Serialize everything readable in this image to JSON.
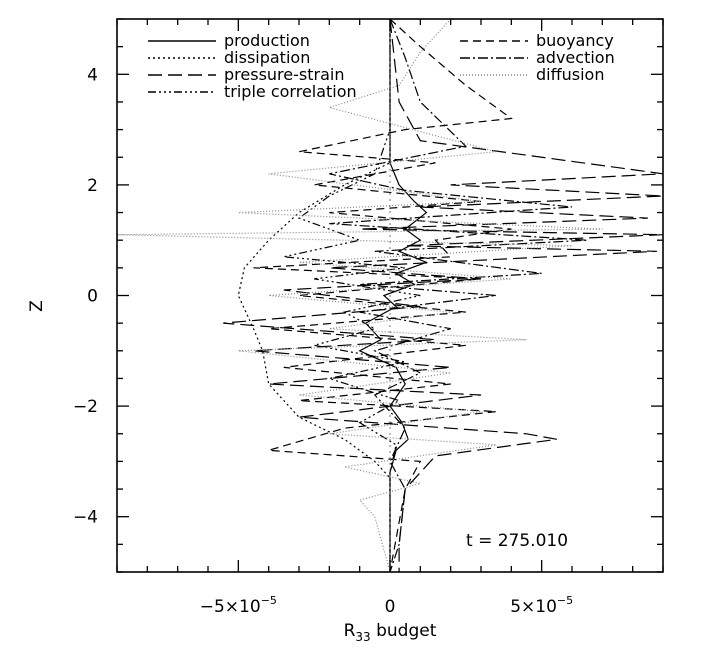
{
  "chart_data": {
    "type": "line",
    "xlabel": "R33 budget",
    "ylabel": "Z",
    "xlim": [
      -9e-05,
      9e-05
    ],
    "ylim": [
      -5,
      5
    ],
    "x_ticks": [
      {
        "value": -5e-05,
        "base": "−5×10",
        "exp": "−5"
      },
      {
        "value": 0,
        "base": "0",
        "exp": ""
      },
      {
        "value": 5e-05,
        "base": "5×10",
        "exp": "−5"
      }
    ],
    "y_ticks": [
      -4,
      -2,
      0,
      2,
      4
    ],
    "annotation": "t  =  275.010",
    "legend_placement": "top",
    "series": [
      {
        "name": "production",
        "dash": "",
        "points": [
          [
            0.0,
            5
          ],
          [
            0.0,
            3
          ],
          [
            0.0,
            2.4
          ],
          [
            3e-06,
            2.0
          ],
          [
            8e-06,
            1.7
          ],
          [
            1.2e-05,
            1.5
          ],
          [
            5e-06,
            1.2
          ],
          [
            1e-05,
            1.0
          ],
          [
            3e-06,
            0.8
          ],
          [
            1.2e-05,
            0.6
          ],
          [
            2e-06,
            0.4
          ],
          [
            8e-06,
            0.2
          ],
          [
            -2e-06,
            0.0
          ],
          [
            2e-06,
            -0.2
          ],
          [
            -8e-06,
            -0.5
          ],
          [
            -3e-06,
            -0.8
          ],
          [
            -1e-05,
            -1.0
          ],
          [
            2e-06,
            -1.3
          ],
          [
            5e-06,
            -1.6
          ],
          [
            0.0,
            -2.0
          ],
          [
            4e-06,
            -2.3
          ],
          [
            6e-06,
            -2.6
          ],
          [
            2e-06,
            -2.8
          ],
          [
            0.0,
            -3.2
          ],
          [
            0.0,
            -5
          ]
        ]
      },
      {
        "name": "dissipation",
        "dash": "2,3",
        "points": [
          [
            0.0,
            5
          ],
          [
            0.0,
            2.4
          ],
          [
            -1.5e-05,
            2.0
          ],
          [
            -3e-05,
            1.5
          ],
          [
            -4e-05,
            1.0
          ],
          [
            -4.8e-05,
            0.5
          ],
          [
            -5e-05,
            0.0
          ],
          [
            -4.5e-05,
            -0.6
          ],
          [
            -4.2e-05,
            -1.0
          ],
          [
            -4e-05,
            -1.6
          ],
          [
            -3e-05,
            -2.2
          ],
          [
            -1.5e-05,
            -2.6
          ],
          [
            -5e-06,
            -3.0
          ],
          [
            0.0,
            -3.3
          ],
          [
            0.0,
            -5
          ]
        ]
      },
      {
        "name": "pressure-strain",
        "dash": "14,6",
        "points": [
          [
            0.0,
            5
          ],
          [
            3e-06,
            3.5
          ],
          [
            1e-05,
            2.8
          ],
          [
            9e-05,
            2.2
          ],
          [
            2e-05,
            2.0
          ],
          [
            9e-05,
            1.8
          ],
          [
            1e-05,
            1.6
          ],
          [
            8.5e-05,
            1.4
          ],
          [
            -1e-05,
            1.2
          ],
          [
            9e-05,
            1.1
          ],
          [
            5e-06,
            0.9
          ],
          [
            8.8e-05,
            0.8
          ],
          [
            -2e-05,
            0.5
          ],
          [
            3e-05,
            0.3
          ],
          [
            -3.5e-05,
            0.1
          ],
          [
            1e-05,
            -0.2
          ],
          [
            -5.5e-05,
            -0.5
          ],
          [
            1.5e-05,
            -0.8
          ],
          [
            -4.5e-05,
            -1.0
          ],
          [
            2e-05,
            -1.3
          ],
          [
            -4e-05,
            -1.6
          ],
          [
            3e-05,
            -1.8
          ],
          [
            -3e-05,
            -2.2
          ],
          [
            4.5e-05,
            -2.5
          ],
          [
            5.5e-05,
            -2.6
          ],
          [
            1.5e-05,
            -2.9
          ],
          [
            5e-06,
            -3.5
          ],
          [
            3e-06,
            -4.5
          ],
          [
            3e-06,
            -5
          ]
        ]
      },
      {
        "name": "triple correlation",
        "dash": "8,3,2,3,2,3,2,3",
        "points": [
          [
            0.0,
            5
          ],
          [
            0.0,
            3
          ],
          [
            -5e-06,
            2.2
          ],
          [
            -2e-05,
            1.8
          ],
          [
            -3e-05,
            1.4
          ],
          [
            -1e-05,
            1.0
          ],
          [
            -3.5e-05,
            0.7
          ],
          [
            5e-06,
            0.5
          ],
          [
            -2.5e-05,
            0.3
          ],
          [
            1e-05,
            0.0
          ],
          [
            -1.5e-05,
            -0.3
          ],
          [
            -5e-06,
            -0.6
          ],
          [
            -2.5e-05,
            -0.9
          ],
          [
            5e-06,
            -1.2
          ],
          [
            -2e-05,
            -1.5
          ],
          [
            3e-06,
            -1.9
          ],
          [
            -1e-05,
            -2.3
          ],
          [
            2e-06,
            -2.7
          ],
          [
            0.0,
            -3.2
          ],
          [
            0.0,
            -5
          ]
        ]
      },
      {
        "name": "buoyancy",
        "dash": "8,5",
        "points": [
          [
            0.0,
            5
          ],
          [
            1e-05,
            4.5
          ],
          [
            2.5e-05,
            3.8
          ],
          [
            4e-05,
            3.2
          ],
          [
            5e-06,
            3.0
          ],
          [
            -3e-05,
            2.6
          ],
          [
            1.5e-05,
            2.4
          ],
          [
            -2.5e-05,
            2.0
          ],
          [
            3e-05,
            1.7
          ],
          [
            -2e-05,
            1.5
          ],
          [
            4e-05,
            1.2
          ],
          [
            1.5e-05,
            1.0
          ],
          [
            2e-05,
            0.7
          ],
          [
            -4.5e-05,
            0.5
          ],
          [
            3e-05,
            0.3
          ],
          [
            -3e-05,
            0.0
          ],
          [
            2.5e-05,
            -0.3
          ],
          [
            -4e-05,
            -0.6
          ],
          [
            2.5e-05,
            -0.9
          ],
          [
            -3.5e-05,
            -1.3
          ],
          [
            2e-05,
            -1.6
          ],
          [
            -3e-05,
            -1.9
          ],
          [
            3.5e-05,
            -2.1
          ],
          [
            -1.5e-05,
            -2.4
          ],
          [
            -4e-05,
            -2.8
          ],
          [
            1e-05,
            -3.0
          ],
          [
            5e-06,
            -3.5
          ],
          [
            0.0,
            -5
          ]
        ]
      },
      {
        "name": "advection",
        "dash": "10,3,2,3",
        "points": [
          [
            0.0,
            5
          ],
          [
            5e-06,
            4.3
          ],
          [
            1e-05,
            3.5
          ],
          [
            2.5e-05,
            2.7
          ],
          [
            -2e-05,
            2.2
          ],
          [
            5e-06,
            1.9
          ],
          [
            6e-05,
            1.6
          ],
          [
            -2e-05,
            1.3
          ],
          [
            6.5e-05,
            1.0
          ],
          [
            -5e-06,
            0.8
          ],
          [
            5e-05,
            0.4
          ],
          [
            -1e-05,
            0.2
          ],
          [
            3.5e-05,
            0.0
          ],
          [
            -1e-05,
            -0.3
          ],
          [
            2e-05,
            -0.6
          ],
          [
            -5e-06,
            -1.0
          ],
          [
            1e-05,
            -1.4
          ],
          [
            -5e-06,
            -1.8
          ],
          [
            5e-06,
            -2.4
          ],
          [
            0.0,
            -3.0
          ],
          [
            5e-06,
            -3.5
          ],
          [
            3e-06,
            -4.5
          ],
          [
            0.0,
            -5
          ]
        ]
      },
      {
        "name": "diffusion",
        "dash": "1,2",
        "color": "#888888",
        "points": [
          [
            2e-05,
            5
          ],
          [
            1e-05,
            4.4
          ],
          [
            3e-06,
            3.8
          ],
          [
            -2e-05,
            3.4
          ],
          [
            3.5e-05,
            2.6
          ],
          [
            -4e-05,
            2.2
          ],
          [
            3e-05,
            1.7
          ],
          [
            -5e-05,
            1.5
          ],
          [
            7e-05,
            1.2
          ],
          [
            -9e-05,
            1.1
          ],
          [
            6e-05,
            0.9
          ],
          [
            -3e-05,
            0.6
          ],
          [
            4e-05,
            0.3
          ],
          [
            -4e-05,
            0.0
          ],
          [
            2e-05,
            -0.3
          ],
          [
            -2e-05,
            -0.6
          ],
          [
            4.5e-05,
            -0.8
          ],
          [
            -5e-05,
            -1.0
          ],
          [
            2e-05,
            -1.4
          ],
          [
            -3e-05,
            -1.8
          ],
          [
            3e-05,
            -2.1
          ],
          [
            -2e-05,
            -2.5
          ],
          [
            3.5e-05,
            -2.7
          ],
          [
            -1.5e-05,
            -3.1
          ],
          [
            1e-05,
            -3.4
          ],
          [
            -1e-05,
            -3.7
          ],
          [
            -5e-06,
            -4.0
          ],
          [
            0.0,
            -5
          ]
        ]
      }
    ]
  }
}
